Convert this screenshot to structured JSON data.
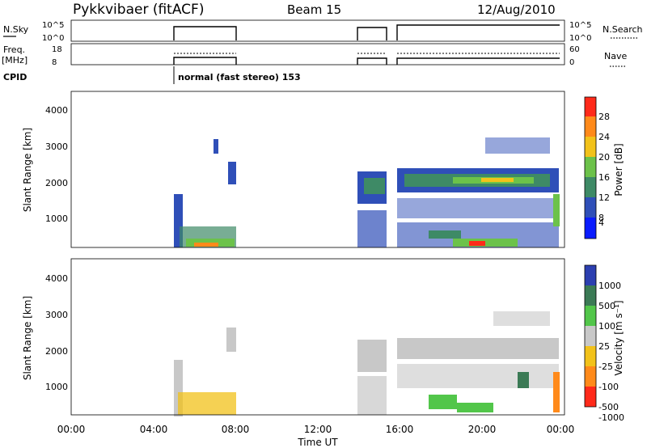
{
  "header": {
    "station": "Pykkvibaer (fitACF)",
    "beam": "Beam 15",
    "date": "12/Aug/2010"
  },
  "sky_panel": {
    "left_label": "N.Sky",
    "right_label": "N.Search",
    "left_ticks": [
      "10^5",
      "10^0"
    ],
    "right_ticks": [
      "10^5",
      "10^0"
    ]
  },
  "freq_panel": {
    "left_label": "Freq.",
    "left_unit": "[MHz]",
    "right_label": "Nave",
    "left_ticks": [
      "18",
      "8"
    ],
    "right_ticks": [
      "60",
      "0"
    ]
  },
  "cpid": {
    "label": "CPID",
    "mode_text": "normal (fast stereo) 153"
  },
  "chart_data": [
    {
      "type": "heatmap",
      "name": "power",
      "ylabel": "Slant Range [km]",
      "xlabel": "",
      "yticks": [
        "4000",
        "3000",
        "2000",
        "1000"
      ],
      "colorbar_label": "Power [dB]",
      "colorbar_ticks": [
        "28",
        "24",
        "20",
        "16",
        "12",
        "8",
        "4"
      ],
      "colors": [
        "#0a1cff",
        "#2f4fb8",
        "#3e8a66",
        "#6cc24a",
        "#f2c21a",
        "#ff8a1a",
        "#ff2a1a"
      ]
    },
    {
      "type": "heatmap",
      "name": "velocity",
      "ylabel": "Slant Range [km]",
      "xlabel": "Time UT",
      "yticks": [
        "4000",
        "3000",
        "2000",
        "1000"
      ],
      "xticks": [
        "00:00",
        "04:00",
        "08:00",
        "12:00",
        "16:00",
        "20:00",
        "00:00"
      ],
      "colorbar_label": "Velocity [m s⁻¹]",
      "colorbar_ticks": [
        "1000",
        "500",
        "100",
        "25",
        "-25",
        "-100",
        "-500",
        "-1000"
      ],
      "colors": [
        "#2c3fb0",
        "#3b7a55",
        "#52c64a",
        "#c8c8c8",
        "#f2c21a",
        "#ff8a1a",
        "#ff2a1a"
      ]
    }
  ]
}
